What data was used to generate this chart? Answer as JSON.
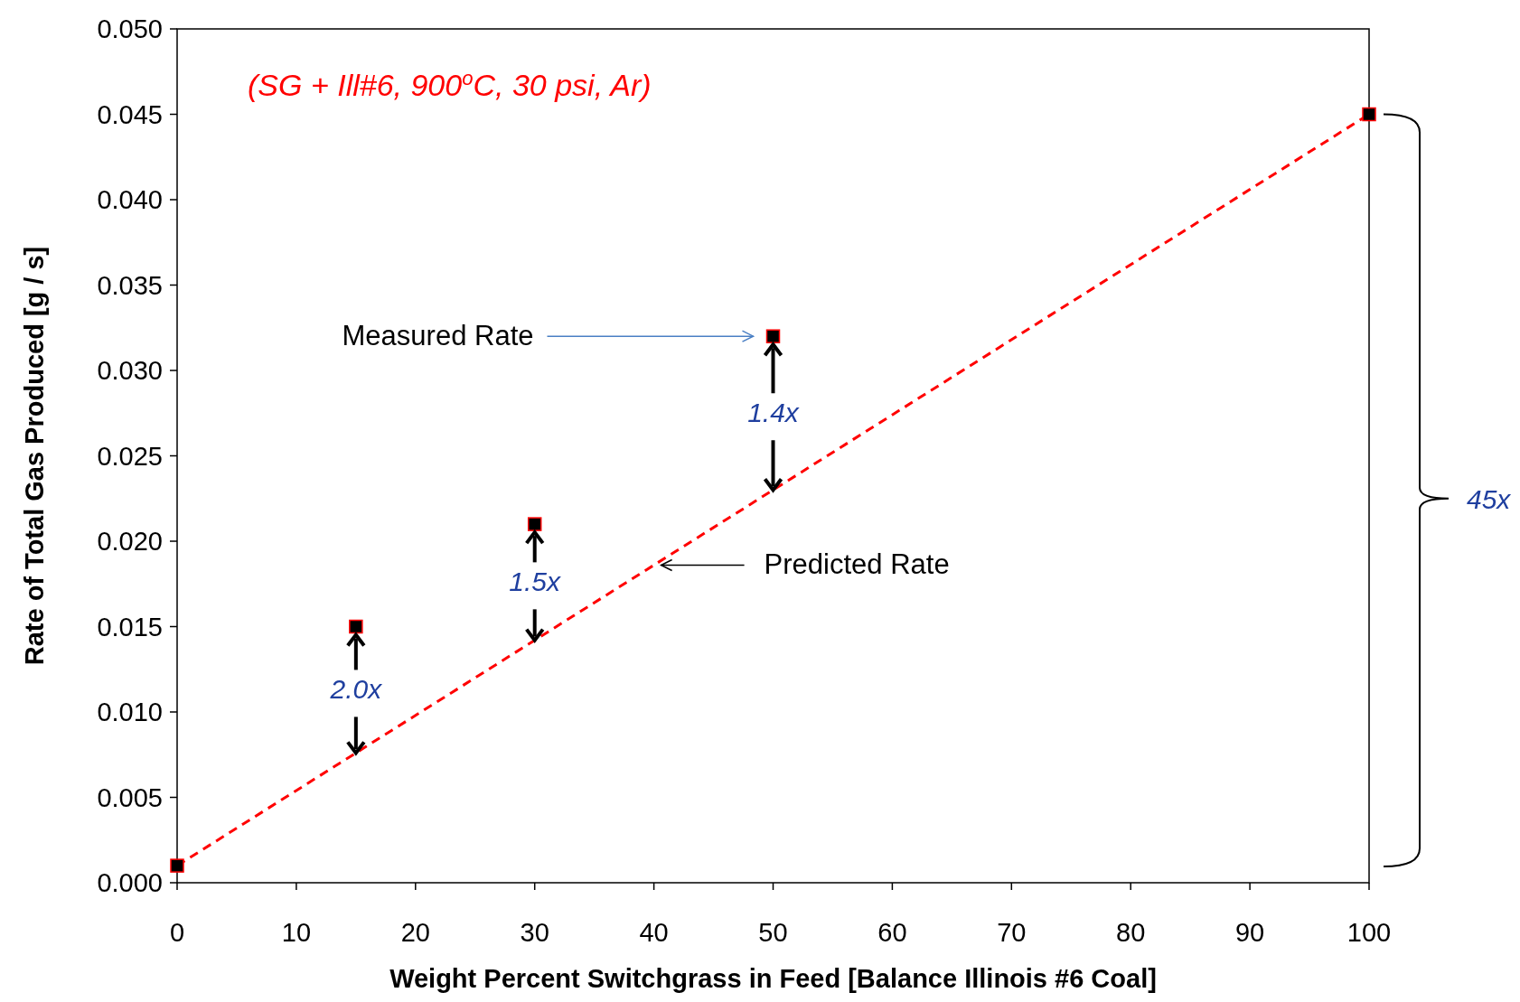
{
  "chart_data": {
    "type": "scatter",
    "xlabel": "Weight Percent Switchgrass in Feed [Balance Illinois #6 Coal]",
    "ylabel": "Rate of Total Gas Produced [g / s]",
    "xlim": [
      0,
      100
    ],
    "xticks": [
      0,
      10,
      20,
      30,
      40,
      50,
      60,
      70,
      80,
      90,
      100
    ],
    "ylim": [
      0,
      0.05
    ],
    "yticks": [
      {
        "value": 0,
        "label": "0.000"
      },
      {
        "value": 0.005,
        "label": "0.005"
      },
      {
        "value": 0.01,
        "label": "0.010"
      },
      {
        "value": 0.015,
        "label": "0.015"
      },
      {
        "value": 0.02,
        "label": "0.020"
      },
      {
        "value": 0.025,
        "label": "0.025"
      },
      {
        "value": 0.03,
        "label": "0.030"
      },
      {
        "value": 0.035,
        "label": "0.035"
      },
      {
        "value": 0.04,
        "label": "0.040"
      },
      {
        "value": 0.045,
        "label": "0.045"
      },
      {
        "value": 0.05,
        "label": "0.050"
      }
    ],
    "grid": false,
    "series": [
      {
        "type": "line",
        "color": "#ff0000",
        "x": [
          0,
          100
        ],
        "values": [
          0.001,
          0.045
        ],
        "line_style": "dashed"
      },
      {
        "color": "#000000",
        "x": [
          0,
          15,
          30,
          50,
          100
        ],
        "values": [
          0.001,
          0.015,
          0.021,
          0.032,
          0.045
        ],
        "marker": "square"
      }
    ],
    "annotations": [
      "(SG + Ill#6, 900$^{o}$C, 30 psi, Ar)",
      "Measured Rate",
      "Predicted Rate",
      {
        "text": "1.4x",
        "x": 50,
        "y": 0.023
      },
      {
        "text": "1.5x",
        "x": 30,
        "y": 0.0142
      },
      {
        "text": "2.0x",
        "x": 15,
        "y": 0.0076
      },
      "45x"
    ]
  }
}
